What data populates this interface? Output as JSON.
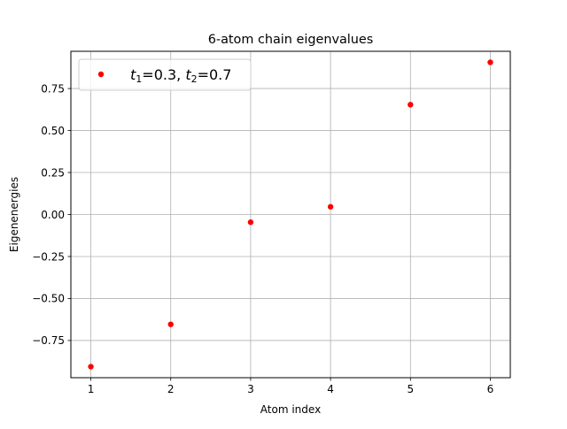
{
  "chart_data": {
    "type": "scatter",
    "title": "6-atom chain eigenvalues",
    "xlabel": "Atom index",
    "ylabel": "Eigenenergies",
    "xlim": [
      0.75,
      6.25
    ],
    "ylim": [
      -0.9716,
      0.9716
    ],
    "x_ticks": [
      1,
      2,
      3,
      4,
      5,
      6
    ],
    "x_tick_labels": [
      "1",
      "2",
      "3",
      "4",
      "5",
      "6"
    ],
    "y_ticks": [
      -0.75,
      -0.5,
      -0.25,
      0.0,
      0.25,
      0.5,
      0.75
    ],
    "y_tick_labels": [
      "−0.75",
      "−0.50",
      "−0.25",
      "0.00",
      "0.25",
      "0.50",
      "0.75"
    ],
    "grid": true,
    "legend_position": "top-left",
    "series": [
      {
        "name_parts": {
          "t1_symbol": "t",
          "t1_sub": "1",
          "t1_value": "=0.3, ",
          "t2_symbol": "t",
          "t2_sub": "2",
          "t2_value": "=0.7"
        },
        "color": "#ff0000",
        "x": [
          1,
          2,
          3,
          4,
          5,
          6
        ],
        "y": [
          -0.906,
          -0.654,
          -0.046,
          0.046,
          0.654,
          0.906
        ]
      }
    ]
  }
}
